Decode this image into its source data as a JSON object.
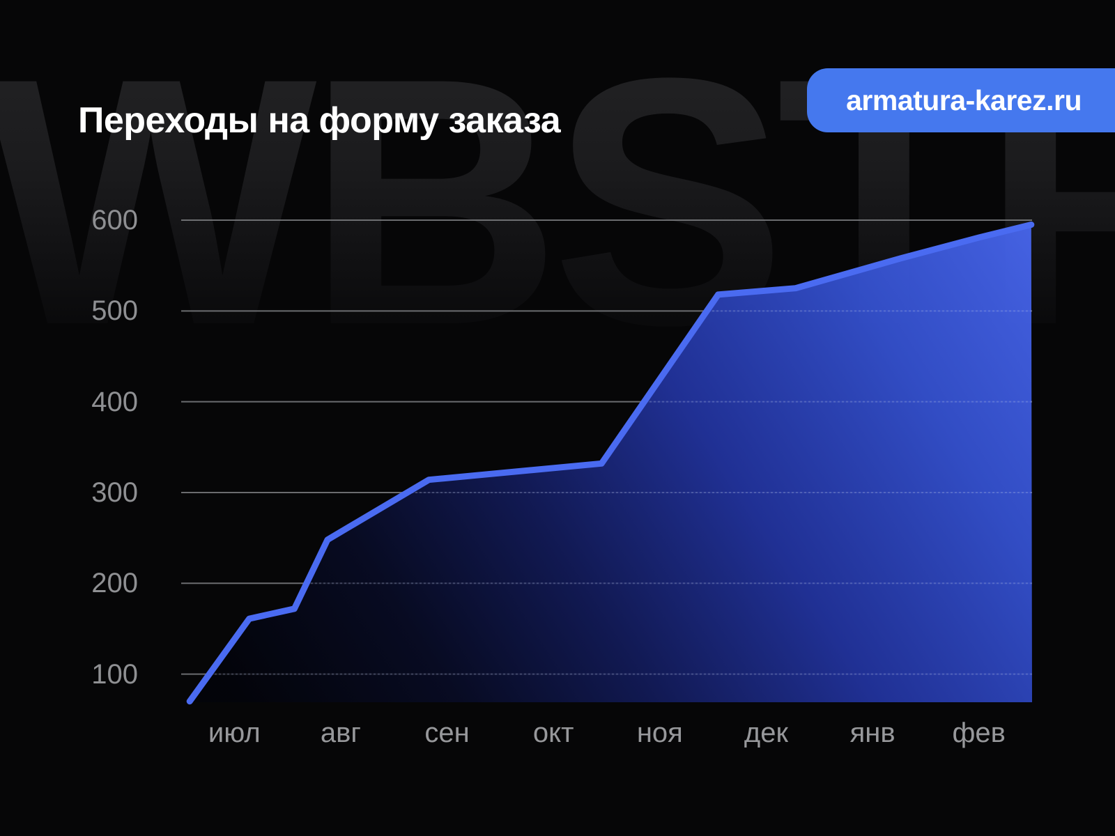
{
  "watermark": {
    "text": "WBSTR"
  },
  "header": {
    "title": "Переходы на форму заказа",
    "badge": {
      "label": "armatura-karez.ru",
      "color": "#4578EE"
    }
  },
  "chart_data": {
    "type": "area",
    "title": "Переходы на форму заказа",
    "x_labels": [
      "июл",
      "авг",
      "сен",
      "окт",
      "ноя",
      "дек",
      "янв",
      "фев"
    ],
    "y_ticks": [
      100,
      200,
      300,
      400,
      500,
      600
    ],
    "ylim": [
      69,
      600
    ],
    "grid": "horizontal",
    "legend_position": "none",
    "series": [
      {
        "name": "Переходы на форму заказа",
        "points": [
          {
            "x": 0.01,
            "v": 70
          },
          {
            "x": 0.08,
            "v": 161
          },
          {
            "x": 0.133,
            "v": 172
          },
          {
            "x": 0.172,
            "v": 248
          },
          {
            "x": 0.291,
            "v": 314
          },
          {
            "x": 0.494,
            "v": 332
          },
          {
            "x": 0.631,
            "v": 518
          },
          {
            "x": 0.722,
            "v": 525
          },
          {
            "x": 0.846,
            "v": 558
          },
          {
            "x": 0.938,
            "v": 581
          },
          {
            "x": 0.999,
            "v": 595
          }
        ]
      }
    ],
    "colors": {
      "line": "#4A6BF1",
      "grid": "#85868A",
      "grid_inside": "#AEB7D6",
      "y_label": "#8F9093",
      "x_label": "#97989B",
      "fill_stops": [
        {
          "o": 0.0,
          "c": "#4968F2",
          "a": 0.93
        },
        {
          "o": 0.2,
          "c": "#3552D2",
          "a": 0.93
        },
        {
          "o": 0.42,
          "c": "#2335A4",
          "a": 0.9
        },
        {
          "o": 0.62,
          "c": "#131C5E",
          "a": 0.87
        },
        {
          "o": 0.8,
          "c": "#080C28",
          "a": 0.82
        },
        {
          "o": 1.0,
          "c": "#02030A",
          "a": 0.78
        }
      ]
    }
  }
}
